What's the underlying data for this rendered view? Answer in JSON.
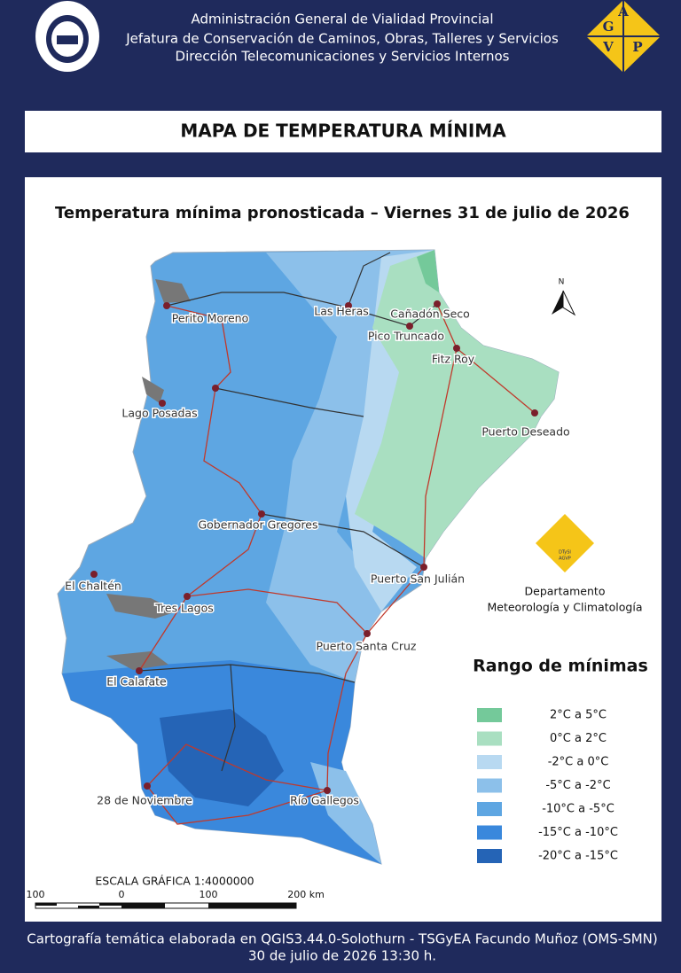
{
  "header": {
    "lines": [
      "Administración General de Vialidad Provincial",
      "Jefatura de Conservación de Caminos, Obras, Talleres y Servicios",
      "Dirección Telecomunicaciones y Servicios Internos"
    ],
    "logo_letters": [
      "A",
      "G",
      "V",
      "P"
    ]
  },
  "title": "MAPA DE TEMPERATURA MÍNIMA",
  "map": {
    "title": "Temperatura mínima pronosticada – Viernes 31 de julio de 2026",
    "north": "N",
    "cities": [
      "Perito Moreno",
      "Las Heras",
      "Cañadón Seco",
      "Pico Truncado",
      "Fitz Roy",
      "Lago Posadas",
      "Puerto Deseado",
      "Gobernador Gregores",
      "El Chaltén",
      "Puerto San Julián",
      "Tres Lagos",
      "Puerto Santa Cruz",
      "El Calafate",
      "28 de Noviembre",
      "Río Gallegos"
    ],
    "department": {
      "logo_lines": [
        "DTySI",
        "AGVP"
      ],
      "lines": [
        "Departamento",
        "Meteorología y Climatología"
      ]
    },
    "legend": {
      "title": "Rango  de mínimas",
      "items": [
        {
          "label": "2°C a 5°C",
          "color": "#74c99a"
        },
        {
          "label": "0°C a 2°C",
          "color": "#a9dfc1"
        },
        {
          "label": "-2°C a 0°C",
          "color": "#b8d9f1"
        },
        {
          "label": "-5°C a -2°C",
          "color": "#8cc0ea"
        },
        {
          "label": "-10°C a -5°C",
          "color": "#5ea6e2"
        },
        {
          "label": "-15°C a -10°C",
          "color": "#3a88dc"
        },
        {
          "label": "-20°C a -15°C",
          "color": "#2564b6"
        }
      ]
    },
    "scale": {
      "title": "ESCALA GRÁFICA 1:4000000",
      "labels": [
        "100",
        "0",
        "100",
        "200 km"
      ]
    }
  },
  "footer": {
    "lines": [
      "Cartografía temática elaborada en QGIS3.44.0-Solothurn - TSGyEA Facundo Muñoz (OMS-SMN)",
      "30 de julio de 2026 13:30 h."
    ]
  }
}
